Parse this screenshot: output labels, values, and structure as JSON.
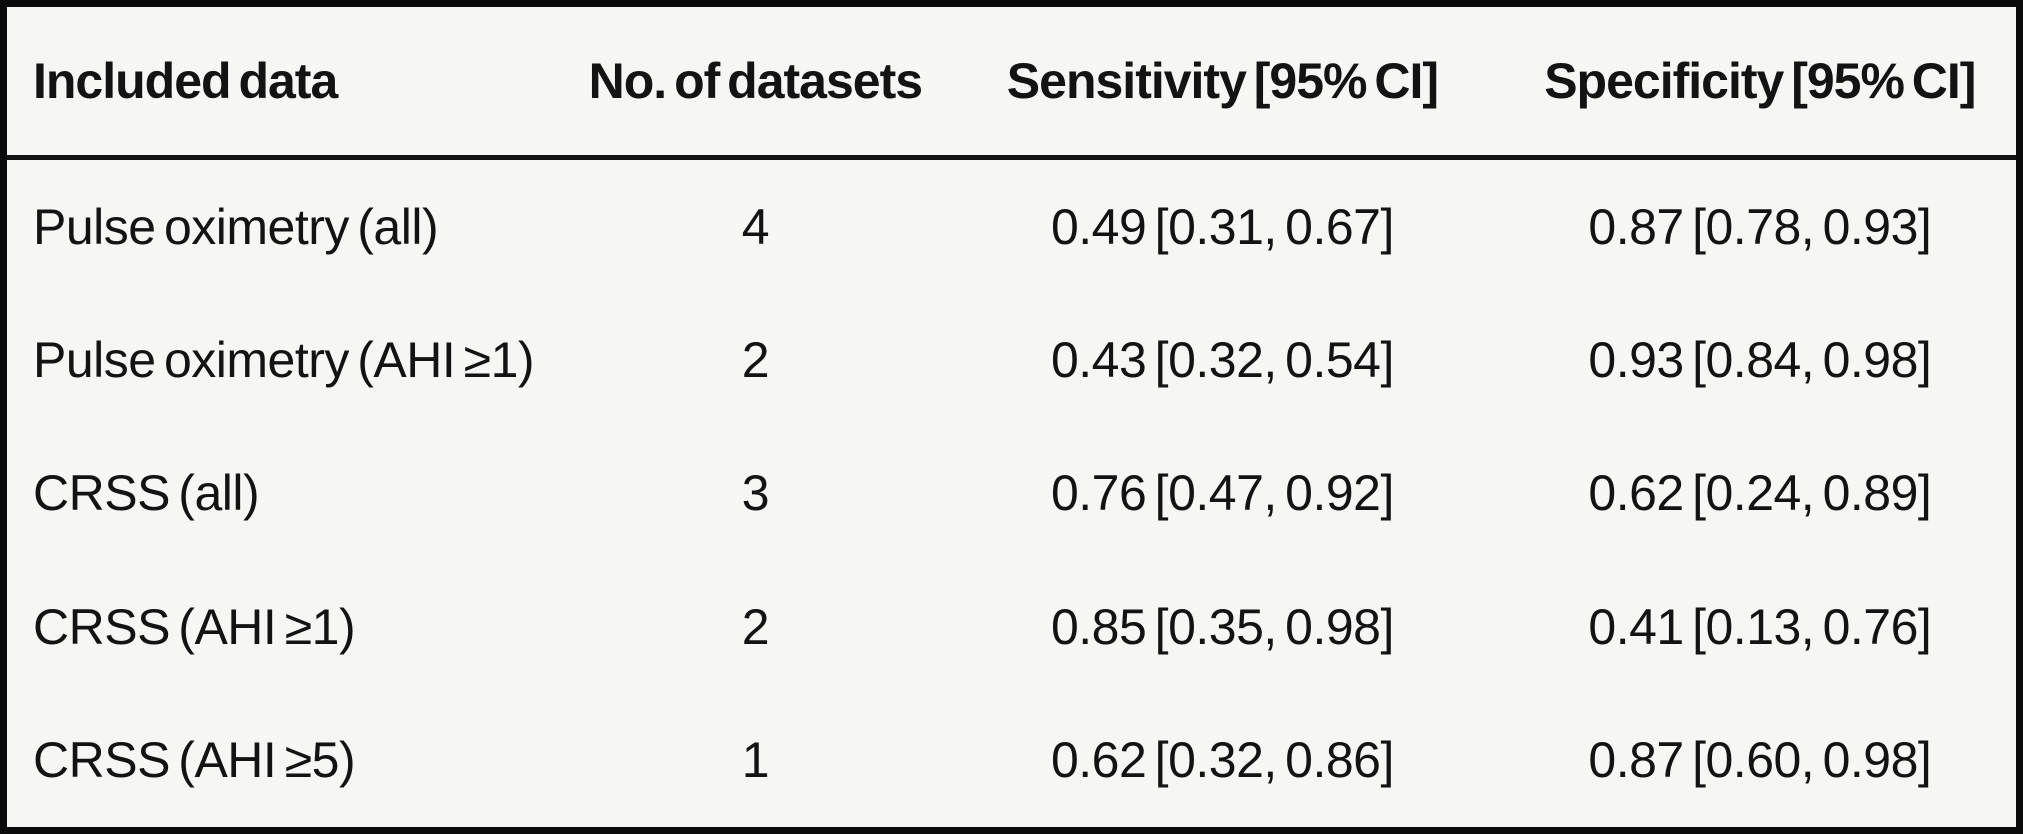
{
  "figure": {
    "type": "table",
    "description": "Pooled diagnostic accuracy of screening tests"
  },
  "colors": {
    "frame": "#0b0b0b",
    "background": "#f6f6f4",
    "text": "#131313",
    "header_rule": "#141414"
  },
  "table": {
    "columns": [
      {
        "label": "Included data",
        "align": "left"
      },
      {
        "label": "No. of datasets",
        "align": "center"
      },
      {
        "label": "Sensitivity [95% CI]",
        "align": "center"
      },
      {
        "label": "Specificity [95% CI]",
        "align": "center"
      }
    ],
    "rows": [
      {
        "included_data": "Pulse oximetry (all)",
        "datasets": "4",
        "sensitivity": "0.49 [0.31, 0.67]",
        "specificity": "0.87 [0.78, 0.93]"
      },
      {
        "included_data": "Pulse oximetry (AHI ≥1)",
        "datasets": "2",
        "sensitivity": "0.43 [0.32, 0.54]",
        "specificity": "0.93 [0.84, 0.98]"
      },
      {
        "included_data": "CRSS (all)",
        "datasets": "3",
        "sensitivity": "0.76 [0.47, 0.92]",
        "specificity": "0.62 [0.24, 0.89]"
      },
      {
        "included_data": "CRSS (AHI ≥1)",
        "datasets": "2",
        "sensitivity": "0.85 [0.35, 0.98]",
        "specificity": "0.41 [0.13, 0.76]"
      },
      {
        "included_data": "CRSS (AHI ≥5)",
        "datasets": "1",
        "sensitivity": "0.62 [0.32, 0.86]",
        "specificity": "0.87 [0.60, 0.98]"
      }
    ]
  }
}
